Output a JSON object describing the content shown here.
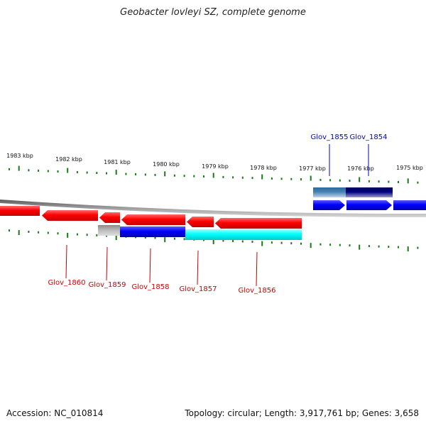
{
  "title": "Geobacter lovleyi SZ, complete genome",
  "footer": {
    "accession": "Accession: NC_010814",
    "summary": "Topology: circular; Length: 3,917,761 bp; Genes: 3,658"
  },
  "ticks": [
    {
      "label": "1983 kbp"
    },
    {
      "label": "1982 kbp"
    },
    {
      "label": "1981 kbp"
    },
    {
      "label": "1980 kbp"
    },
    {
      "label": "1979 kbp"
    },
    {
      "label": "1978 kbp"
    },
    {
      "label": "1977 kbp"
    },
    {
      "label": "1976 kbp"
    },
    {
      "label": "1975 kbp"
    }
  ],
  "genes_top": [
    {
      "label": "Glov_1855",
      "color": "#0000cc"
    },
    {
      "label": "Glov_1854",
      "color": "#0000cc"
    }
  ],
  "genes_bottom": [
    {
      "label": "Glov_1860",
      "color": "#cc0000"
    },
    {
      "label": "Glov_1859",
      "color": "#cc0000"
    },
    {
      "label": "Glov_1858",
      "color": "#cc0000"
    },
    {
      "label": "Glov_1857",
      "color": "#cc0000"
    },
    {
      "label": "Glov_1856",
      "color": "#cc0000"
    }
  ],
  "colors": {
    "tick": "#1a7a1a",
    "forward_strand": "#0000ff",
    "reverse_strand": "#ff0000",
    "backbone": "#808080"
  }
}
